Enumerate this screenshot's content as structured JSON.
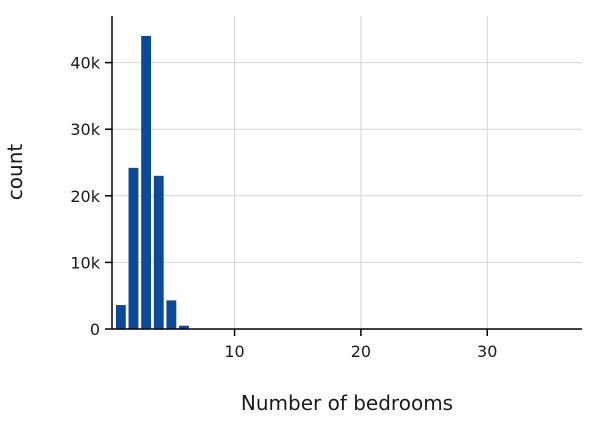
{
  "chart_data": {
    "type": "bar",
    "subtype": "histogram",
    "xlabel": "Number of bedrooms",
    "ylabel": "count",
    "x": [
      1,
      2,
      3,
      4,
      5,
      6
    ],
    "values": [
      3600,
      24200,
      44000,
      23000,
      4300,
      500
    ],
    "xlim": [
      0.3,
      37.5
    ],
    "ylim": [
      0,
      47000
    ],
    "xticks": [
      10,
      20,
      30
    ],
    "xtick_labels": [
      "10",
      "20",
      "30"
    ],
    "yticks": [
      0,
      10000,
      20000,
      30000,
      40000
    ],
    "ytick_labels": [
      "0",
      "10k",
      "20k",
      "30k",
      "40k"
    ],
    "bar_color": "#0d4a96",
    "grid": true,
    "legend": false
  }
}
